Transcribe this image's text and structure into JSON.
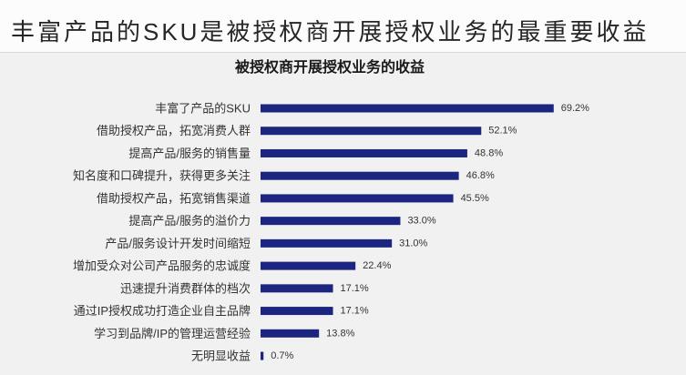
{
  "page": {
    "title": "丰富产品的SKU是被授权商开展授权业务的最重要收益"
  },
  "colors": {
    "bar": "#1c2580",
    "background": "#f1f1f1",
    "header_background": "#fcfcfc",
    "title_text": "#262626",
    "label_text": "#333333"
  },
  "chart_data": {
    "type": "bar",
    "orientation": "horizontal",
    "title": "被授权商开展授权业务的收益",
    "xlabel": "",
    "ylabel": "",
    "categories": [
      "丰富了产品的SKU",
      "借助授权产品，拓宽消费人群",
      "提高产品/服务的销售量",
      "知名度和口碑提升，获得更多关注",
      "借助授权产品，拓宽销售渠道",
      "提高产品/服务的溢价力",
      "产品/服务设计开发时间缩短",
      "增加受众对公司产品服务的忠诚度",
      "迅速提升消费群体的档次",
      "通过IP授权成功打造企业自主品牌",
      "学习到品牌/IP的管理运营经验",
      "无明显收益"
    ],
    "values": [
      69.2,
      52.1,
      48.8,
      46.8,
      45.5,
      33.0,
      31.0,
      22.4,
      17.1,
      17.1,
      13.8,
      0.7
    ],
    "value_suffix": "%",
    "xlim": [
      0,
      100
    ],
    "grid": false,
    "legend": "none",
    "data_labels": true
  }
}
